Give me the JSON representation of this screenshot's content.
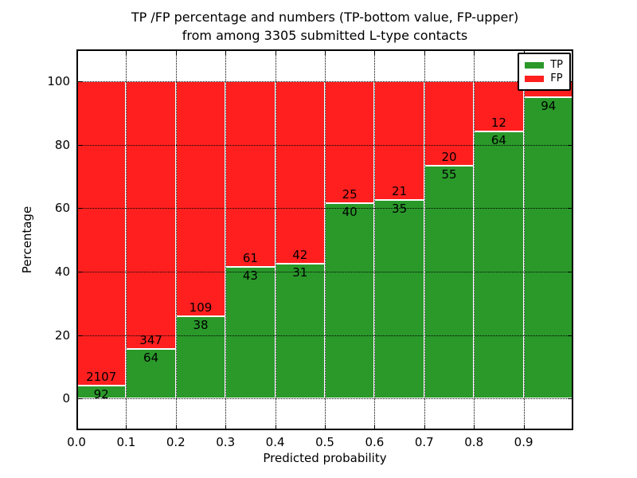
{
  "header": {
    "title_line1": "TP /FP percentage and numbers (TP-bottom value, FP-upper)",
    "title_line2": "from among 3305 submitted L-type contacts"
  },
  "chart_data": {
    "type": "bar",
    "subtype": "stacked-percentage-histogram",
    "title": "TP /FP percentage and numbers (TP-bottom value, FP-upper)\nfrom among 3305 submitted L-type contacts",
    "xlabel": "Predicted probability",
    "ylabel": "Percentage",
    "total_submitted": 3305,
    "xlim": [
      0.0,
      1.0
    ],
    "ylim": [
      -10,
      110
    ],
    "bin_width": 0.1,
    "x_tick_labels": [
      "0.0",
      "0.1",
      "0.2",
      "0.3",
      "0.4",
      "0.5",
      "0.6",
      "0.7",
      "0.8",
      "0.9"
    ],
    "y_tick_values": [
      0,
      20,
      40,
      60,
      80,
      100
    ],
    "grid": "dotted-black-above-bars",
    "colors": {
      "tp": "#2a992a",
      "fp": "#ff1f1f",
      "bar_edge": "#ffffff"
    },
    "legend": {
      "position": "upper-right",
      "entries": [
        {
          "label": "TP",
          "color": "#2a992a"
        },
        {
          "label": "FP",
          "color": "#ff1f1f"
        }
      ]
    },
    "stack_total_pct": 100,
    "bins": [
      {
        "x_start": 0.0,
        "x_end": 0.1,
        "tp_count_label": "92",
        "fp_count_label": "2107",
        "tp_pct": 4.18
      },
      {
        "x_start": 0.1,
        "x_end": 0.2,
        "tp_count_label": "64",
        "fp_count_label": "347",
        "tp_pct": 15.57
      },
      {
        "x_start": 0.2,
        "x_end": 0.3,
        "tp_count_label": "38",
        "fp_count_label": "109",
        "tp_pct": 25.85
      },
      {
        "x_start": 0.3,
        "x_end": 0.4,
        "tp_count_label": "43",
        "fp_count_label": "61",
        "tp_pct": 41.35
      },
      {
        "x_start": 0.4,
        "x_end": 0.5,
        "tp_count_label": "31",
        "fp_count_label": "42",
        "tp_pct": 42.47
      },
      {
        "x_start": 0.5,
        "x_end": 0.6,
        "tp_count_label": "40",
        "fp_count_label": "25",
        "tp_pct": 61.54
      },
      {
        "x_start": 0.6,
        "x_end": 0.7,
        "tp_count_label": "35",
        "fp_count_label": "21",
        "tp_pct": 62.5
      },
      {
        "x_start": 0.7,
        "x_end": 0.8,
        "tp_count_label": "55",
        "fp_count_label": "20",
        "tp_pct": 73.33
      },
      {
        "x_start": 0.8,
        "x_end": 0.9,
        "tp_count_label": "64",
        "fp_count_label": "12",
        "tp_pct": 84.21
      },
      {
        "x_start": 0.9,
        "x_end": 1.0,
        "tp_count_label": "94",
        "fp_count_label": "",
        "tp_pct": 94.95
      }
    ]
  }
}
